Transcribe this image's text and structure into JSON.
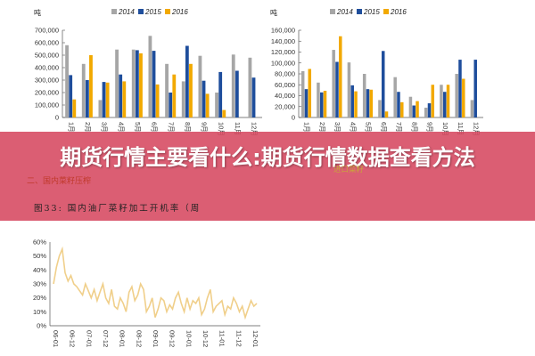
{
  "banner": {
    "title": "期货行情主要看什么:期货行情数据查看方法"
  },
  "section_label": "二、国内菜籽压榨",
  "figure_caption": "图33: 国内油厂菜籽加工开机率（周",
  "right_chart_tail": "进口菜籽",
  "colors": {
    "s2014": "#a6a6a6",
    "s2015": "#1f4e9c",
    "s2016": "#f2a900",
    "line": "#f0cf8a",
    "banner": "#d64860"
  },
  "chart_data": [
    {
      "type": "bar",
      "unit": "吨",
      "categories": [
        "1月",
        "2月",
        "3月",
        "4月",
        "5月",
        "6月",
        "7月",
        "8月",
        "9月",
        "10月",
        "11月",
        "12月"
      ],
      "ylim": [
        0,
        700000
      ],
      "yticks": [
        0,
        100000,
        200000,
        300000,
        400000,
        500000,
        600000,
        700000
      ],
      "series": [
        {
          "name": "2014",
          "values": [
            580000,
            430000,
            140000,
            545000,
            545000,
            655000,
            430000,
            290000,
            495000,
            200000,
            505000,
            480000
          ]
        },
        {
          "name": "2015",
          "values": [
            340000,
            300000,
            285000,
            345000,
            540000,
            535000,
            200000,
            575000,
            295000,
            365000,
            375000,
            320000
          ]
        },
        {
          "name": "2016",
          "values": [
            145000,
            500000,
            280000,
            290000,
            515000,
            265000,
            345000,
            430000,
            190000,
            60000,
            null,
            null
          ]
        }
      ],
      "legend_position": "top"
    },
    {
      "type": "bar",
      "unit": "吨",
      "categories": [
        "1月",
        "2月",
        "3月",
        "4月",
        "5月",
        "6月",
        "7月",
        "8月",
        "9月",
        "10月",
        "11月",
        "12月"
      ],
      "ylim": [
        0,
        160000
      ],
      "yticks": [
        0,
        20000,
        40000,
        60000,
        80000,
        100000,
        120000,
        140000,
        160000
      ],
      "series": [
        {
          "name": "2014",
          "values": [
            85000,
            64000,
            124000,
            101000,
            80000,
            32000,
            74000,
            38000,
            18000,
            60000,
            80000,
            32000
          ]
        },
        {
          "name": "2015",
          "values": [
            52000,
            46000,
            102000,
            59000,
            52000,
            122000,
            47000,
            22000,
            26000,
            47000,
            106000,
            106000
          ]
        },
        {
          "name": "2016",
          "values": [
            89000,
            49000,
            149000,
            48000,
            51000,
            11000,
            28000,
            30000,
            60000,
            60000,
            71000,
            null
          ]
        }
      ],
      "legend_position": "top"
    },
    {
      "type": "line",
      "x_ticks": [
        "06-01",
        "06-12",
        "07-01",
        "07-12",
        "08-01",
        "08-12",
        "09-01",
        "09-12",
        "10-01",
        "10-12",
        "11-01",
        "11-12",
        "12-01"
      ],
      "ylim": [
        0,
        0.6
      ],
      "yticks": [
        "0%",
        "10%",
        "20%",
        "30%",
        "40%",
        "50%",
        "60%"
      ],
      "series": [
        {
          "values": [
            0.3,
            0.42,
            0.5,
            0.55,
            0.38,
            0.32,
            0.36,
            0.3,
            0.28,
            0.25,
            0.22,
            0.3,
            0.25,
            0.2,
            0.26,
            0.18,
            0.24,
            0.3,
            0.2,
            0.16,
            0.26,
            0.14,
            0.12,
            0.2,
            0.16,
            0.1,
            0.24,
            0.28,
            0.18,
            0.22,
            0.3,
            0.26,
            0.1,
            0.14,
            0.2,
            0.06,
            0.12,
            0.2,
            0.18,
            0.1,
            0.15,
            0.12,
            0.2,
            0.24,
            0.16,
            0.1,
            0.2,
            0.12,
            0.18,
            0.16,
            0.2,
            0.08,
            0.12,
            0.2,
            0.26,
            0.1,
            0.14,
            0.16,
            0.18,
            0.08,
            0.14,
            0.12,
            0.2,
            0.16,
            0.1,
            0.14,
            0.06,
            0.12,
            0.18,
            0.14,
            0.16
          ]
        }
      ]
    }
  ]
}
